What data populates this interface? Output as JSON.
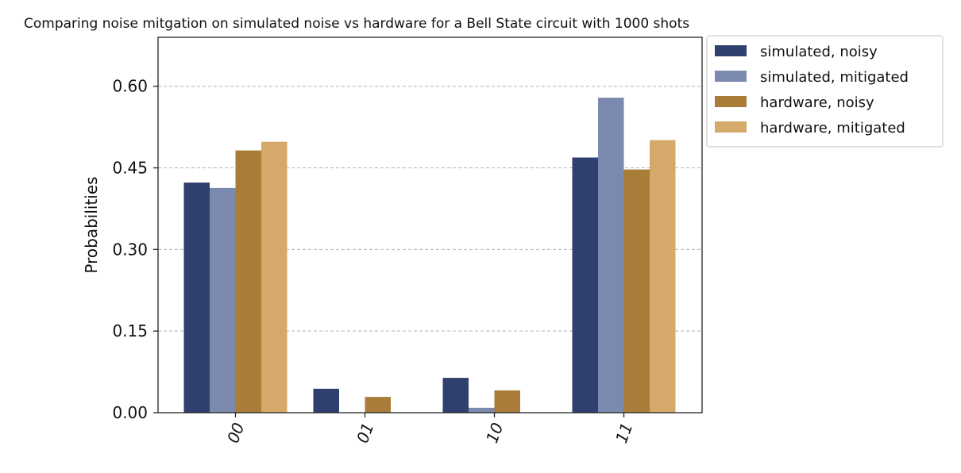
{
  "chart_data": {
    "type": "bar",
    "title": "Comparing noise mitgation on simulated noise vs hardware for a Bell State circuit with 1000 shots",
    "xlabel": "",
    "ylabel": "Probabilities",
    "categories": [
      "00",
      "01",
      "10",
      "11"
    ],
    "yticks": [
      "0.00",
      "0.15",
      "0.30",
      "0.45",
      "0.60"
    ],
    "ylim": [
      0,
      0.69
    ],
    "grid": true,
    "legend_position": "outside top-right",
    "series": [
      {
        "name": "simulated, noisy",
        "color": "#2f3f6e",
        "values": [
          0.423,
          0.044,
          0.064,
          0.469
        ]
      },
      {
        "name": "simulated, mitigated",
        "color": "#7a89ad",
        "values": [
          0.413,
          0.0,
          0.009,
          0.579
        ]
      },
      {
        "name": "hardware, noisy",
        "color": "#a97d38",
        "values": [
          0.482,
          0.029,
          0.041,
          0.447
        ]
      },
      {
        "name": "hardware, mitigated",
        "color": "#d4a96a",
        "values": [
          0.498,
          0.0,
          0.0,
          0.501
        ]
      }
    ]
  }
}
